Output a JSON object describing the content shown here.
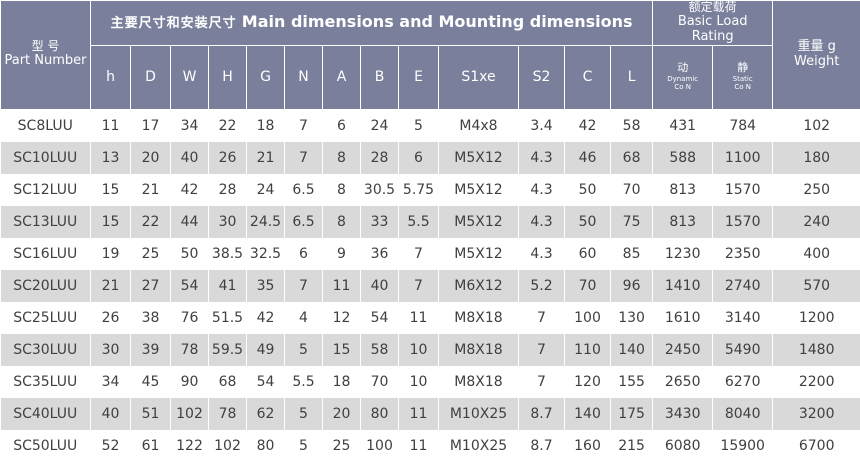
{
  "header": {
    "main_cn": "主要尺寸和安装尺寸",
    "main_en": "Main dimensions and Mounting dimensions",
    "part_cn": "型  号",
    "part_en": "Part Number",
    "load_cn": "额定载荷",
    "load_en_1": "Basic Load",
    "load_en_2": "Rating",
    "weight_cn": "重量 g",
    "weight_en": "Weight",
    "dynamic_cn": "动",
    "dynamic_en": "Dynamic",
    "dynamic_unit": "Co  N",
    "static_cn": "静",
    "static_en": "Static",
    "static_unit": "Co  N",
    "columns": [
      "h",
      "D",
      "W",
      "H",
      "G",
      "N",
      "A",
      "B",
      "E",
      "S1xe",
      "S2",
      "C",
      "L"
    ]
  },
  "rows": [
    [
      "SC8LUU",
      "11",
      "17",
      "34",
      "22",
      "18",
      "7",
      "6",
      "24",
      "5",
      "M4x8",
      "3.4",
      "42",
      "58",
      "431",
      "784",
      "102"
    ],
    [
      "SC10LUU",
      "13",
      "20",
      "40",
      "26",
      "21",
      "7",
      "8",
      "28",
      "6",
      "M5X12",
      "4.3",
      "46",
      "68",
      "588",
      "1100",
      "180"
    ],
    [
      "SC12LUU",
      "15",
      "21",
      "42",
      "28",
      "24",
      "6.5",
      "8",
      "30.5",
      "5.75",
      "M5X12",
      "4.3",
      "50",
      "70",
      "813",
      "1570",
      "250"
    ],
    [
      "SC13LUU",
      "15",
      "22",
      "44",
      "30",
      "24.5",
      "6.5",
      "8",
      "33",
      "5.5",
      "M5X12",
      "4.3",
      "50",
      "75",
      "813",
      "1570",
      "240"
    ],
    [
      "SC16LUU",
      "19",
      "25",
      "50",
      "38.5",
      "32.5",
      "6",
      "9",
      "36",
      "7",
      "M5X12",
      "4.3",
      "60",
      "85",
      "1230",
      "2350",
      "400"
    ],
    [
      "SC20LUU",
      "21",
      "27",
      "54",
      "41",
      "35",
      "7",
      "11",
      "40",
      "7",
      "M6X12",
      "5.2",
      "70",
      "96",
      "1410",
      "2740",
      "570"
    ],
    [
      "SC25LUU",
      "26",
      "38",
      "76",
      "51.5",
      "42",
      "4",
      "12",
      "54",
      "11",
      "M8X18",
      "7",
      "100",
      "130",
      "1610",
      "3140",
      "1200"
    ],
    [
      "SC30LUU",
      "30",
      "39",
      "78",
      "59.5",
      "49",
      "5",
      "15",
      "58",
      "10",
      "M8X18",
      "7",
      "110",
      "140",
      "2450",
      "5490",
      "1480"
    ],
    [
      "SC35LUU",
      "34",
      "45",
      "90",
      "68",
      "54",
      "5.5",
      "18",
      "70",
      "10",
      "M8X18",
      "7",
      "120",
      "155",
      "2650",
      "6270",
      "2200"
    ],
    [
      "SC40LUU",
      "40",
      "51",
      "102",
      "78",
      "62",
      "5",
      "20",
      "80",
      "11",
      "M10X25",
      "8.7",
      "140",
      "175",
      "3430",
      "8040",
      "3200"
    ],
    [
      "SC50LUU",
      "52",
      "61",
      "122",
      "102",
      "80",
      "5",
      "25",
      "100",
      "11",
      "M10X25",
      "8.7",
      "160",
      "215",
      "6080",
      "15900",
      "6700"
    ]
  ]
}
